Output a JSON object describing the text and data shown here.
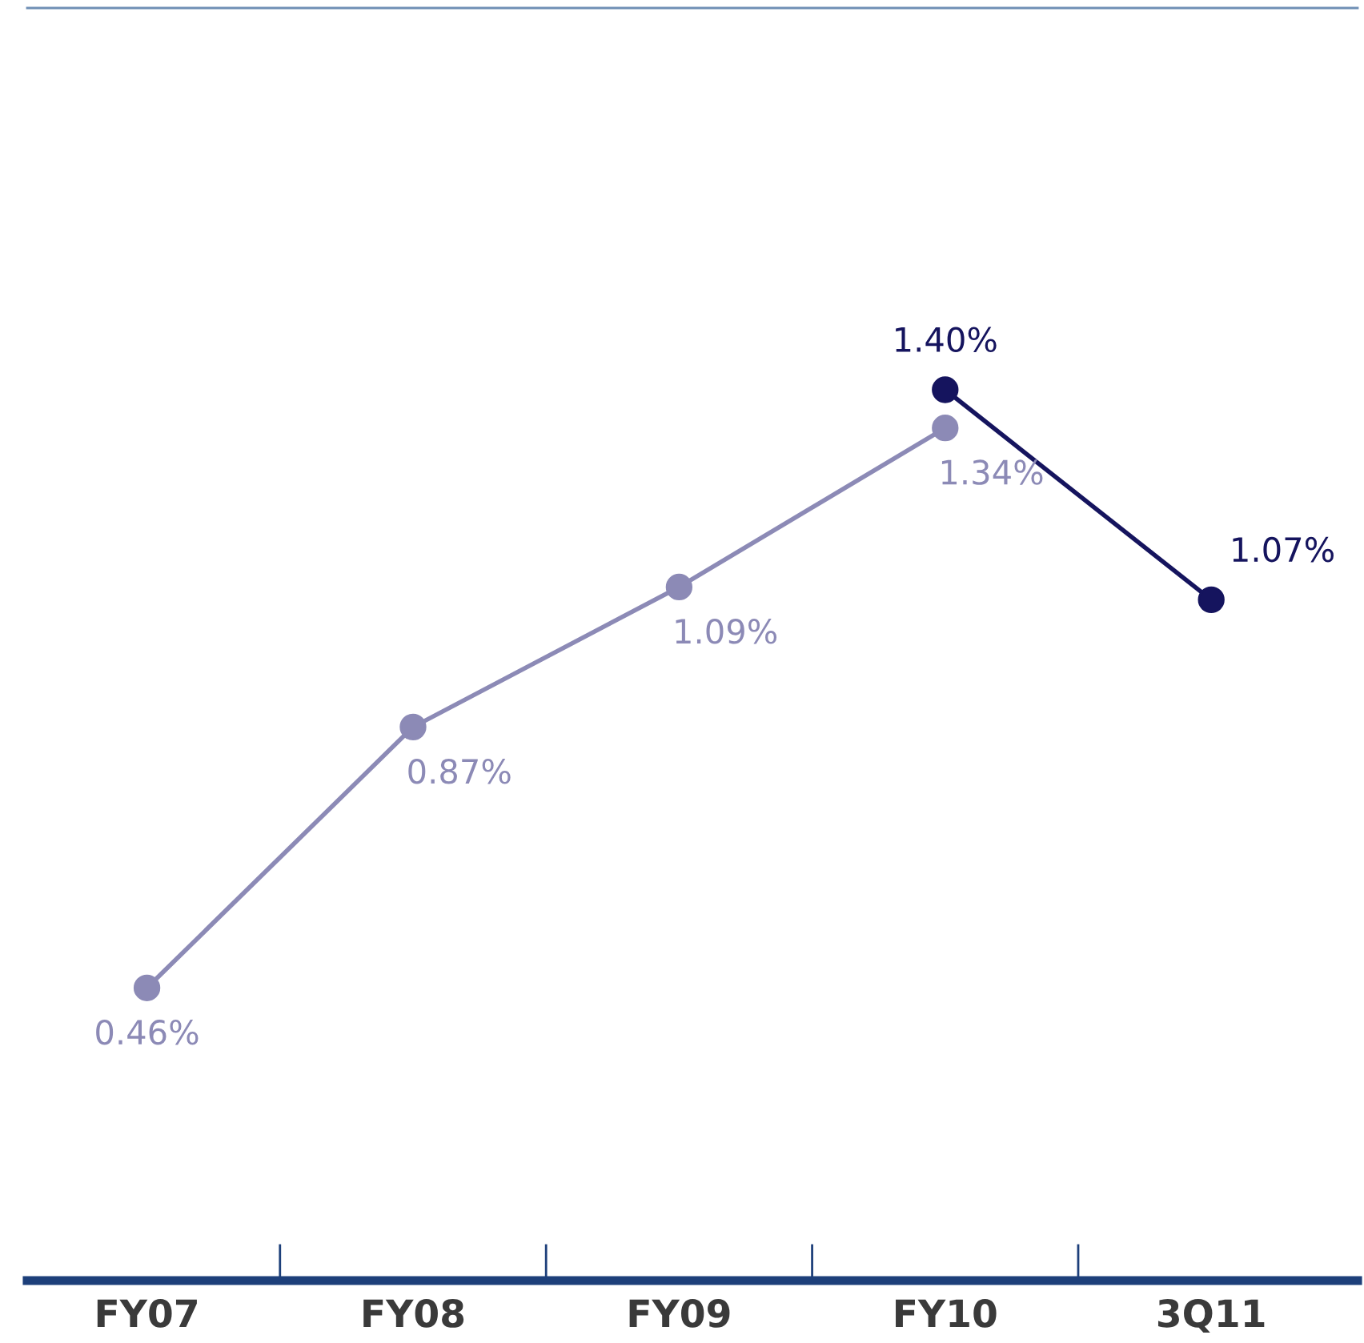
{
  "chart_data": {
    "type": "line",
    "categories": [
      "FY07",
      "FY08",
      "FY09",
      "FY10",
      "3Q11"
    ],
    "series": [
      {
        "color": "#8c8ab6",
        "values": [
          0.46,
          0.87,
          1.09,
          1.34,
          null
        ],
        "value_labels": [
          "0.46%",
          "0.87%",
          "1.09%",
          "1.34%",
          null
        ]
      },
      {
        "color": "#15145e",
        "values": [
          null,
          null,
          null,
          1.4,
          1.07
        ],
        "value_labels": [
          null,
          null,
          null,
          "1.40%",
          "1.07%"
        ]
      }
    ],
    "ylim": [
      0,
      2
    ],
    "marker": "circle",
    "line_style": "solid",
    "grid": false,
    "legend": false,
    "tick_labels": "x"
  }
}
